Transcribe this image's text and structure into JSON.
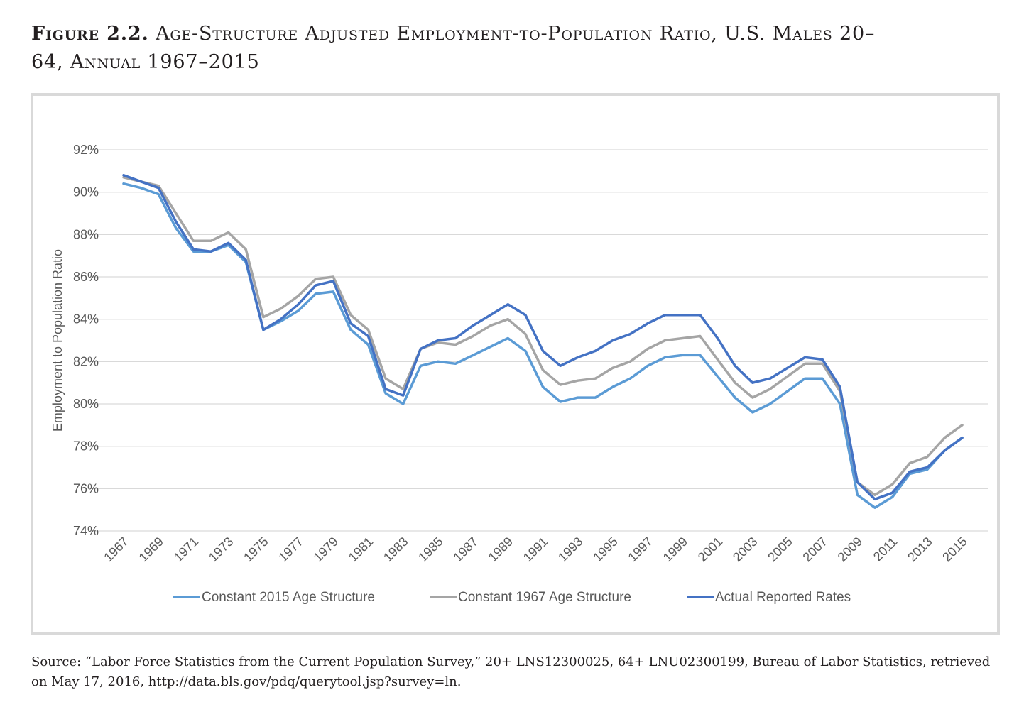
{
  "figure": {
    "label": "Figure 2.2.",
    "title": "Age-Structure Adjusted Employment-to-Population Ratio, U.S. Males 20–64, Annual 1967–2015"
  },
  "source": "Source: “Labor Force Statistics from the Current Population Survey,” 20+ LNS12300025, 64+ LNU02300199, Bureau of Labor Statistics, retrieved on May 17, 2016, http://data.bls.gov/pdq/querytool.jsp?survey=ln.",
  "chart_data": {
    "type": "line",
    "title": "",
    "xlabel": "",
    "ylabel": "Employment to Population Ratio",
    "ylim": [
      74,
      92
    ],
    "yticks": [
      74,
      76,
      78,
      80,
      82,
      84,
      86,
      88,
      90,
      92
    ],
    "ytick_labels": [
      "74%",
      "76%",
      "78%",
      "80%",
      "82%",
      "84%",
      "86%",
      "88%",
      "90%",
      "92%"
    ],
    "grid": true,
    "legend_position": "bottom",
    "x": [
      1967,
      1968,
      1969,
      1970,
      1971,
      1972,
      1973,
      1974,
      1975,
      1976,
      1977,
      1978,
      1979,
      1980,
      1981,
      1982,
      1983,
      1984,
      1985,
      1986,
      1987,
      1988,
      1989,
      1990,
      1991,
      1992,
      1993,
      1994,
      1995,
      1996,
      1997,
      1998,
      1999,
      2000,
      2001,
      2002,
      2003,
      2004,
      2005,
      2006,
      2007,
      2008,
      2009,
      2010,
      2011,
      2012,
      2013,
      2014,
      2015
    ],
    "xtick_labels": [
      "1967",
      "1969",
      "1971",
      "1973",
      "1975",
      "1977",
      "1979",
      "1981",
      "1983",
      "1985",
      "1987",
      "1989",
      "1991",
      "1993",
      "1995",
      "1997",
      "1999",
      "2001",
      "2003",
      "2005",
      "2007",
      "2009",
      "2011",
      "2013",
      "2015"
    ],
    "series": [
      {
        "name": "Constant 2015 Age Structure",
        "color": "#5b9bd5",
        "values": [
          90.4,
          90.2,
          89.9,
          88.3,
          87.2,
          87.2,
          87.5,
          86.7,
          83.5,
          83.9,
          84.4,
          85.2,
          85.3,
          83.5,
          82.8,
          80.5,
          80.0,
          81.8,
          82.0,
          81.9,
          82.3,
          82.7,
          83.1,
          82.5,
          80.8,
          80.1,
          80.3,
          80.3,
          80.8,
          81.2,
          81.8,
          82.2,
          82.3,
          82.3,
          81.3,
          80.3,
          79.6,
          80.0,
          80.6,
          81.2,
          81.2,
          80.0,
          75.7,
          75.1,
          75.6,
          76.7,
          76.9,
          77.8,
          78.4
        ]
      },
      {
        "name": "Constant 1967 Age Structure",
        "color": "#a5a5a5",
        "values": [
          90.7,
          90.5,
          90.3,
          89.0,
          87.7,
          87.7,
          88.1,
          87.3,
          84.1,
          84.5,
          85.1,
          85.9,
          86.0,
          84.2,
          83.5,
          81.2,
          80.7,
          82.6,
          82.9,
          82.8,
          83.2,
          83.7,
          84.0,
          83.3,
          81.6,
          80.9,
          81.1,
          81.2,
          81.7,
          82.0,
          82.6,
          83.0,
          83.1,
          83.2,
          82.1,
          81.0,
          80.3,
          80.7,
          81.3,
          81.9,
          81.9,
          80.6,
          76.3,
          75.7,
          76.2,
          77.2,
          77.5,
          78.4,
          79.0
        ]
      },
      {
        "name": "Actual Reported Rates",
        "color": "#4472c4",
        "values": [
          90.8,
          90.5,
          90.2,
          88.6,
          87.3,
          87.2,
          87.6,
          86.8,
          83.5,
          84.0,
          84.7,
          85.6,
          85.8,
          83.8,
          83.2,
          80.7,
          80.4,
          82.6,
          83.0,
          83.1,
          83.7,
          84.2,
          84.7,
          84.2,
          82.5,
          81.8,
          82.2,
          82.5,
          83.0,
          83.3,
          83.8,
          84.2,
          84.2,
          84.2,
          83.1,
          81.8,
          81.0,
          81.2,
          81.7,
          82.2,
          82.1,
          80.8,
          76.3,
          75.5,
          75.8,
          76.8,
          77.0,
          77.8,
          78.4
        ]
      }
    ]
  }
}
